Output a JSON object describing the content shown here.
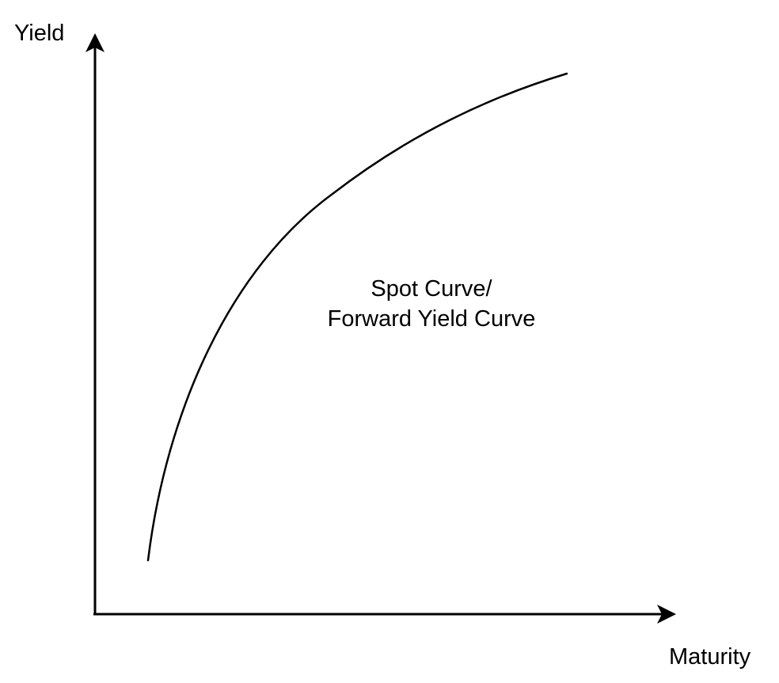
{
  "diagram": {
    "y_axis_label": "Yield",
    "x_axis_label": "Maturity",
    "curve_label_line1": "Spot Curve/",
    "curve_label_line2": "Forward Yield Curve",
    "colors": {
      "line": "#000000",
      "background": "#ffffff"
    }
  }
}
